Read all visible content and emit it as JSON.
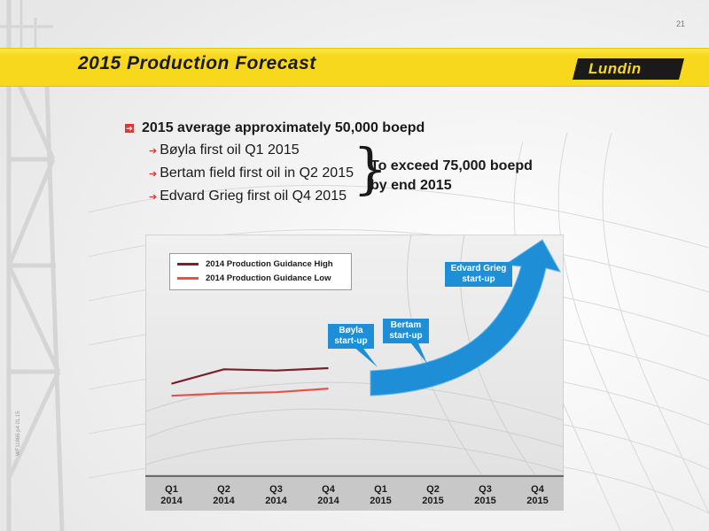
{
  "page": {
    "number": "21",
    "watermark": "WF11866 p4 01.15"
  },
  "header": {
    "title": "2015 Production Forecast",
    "logo_text": "Lundin"
  },
  "bullets": {
    "main": "2015 average approximately 50,000 boepd",
    "subs": [
      "Bøyla first oil Q1 2015",
      "Bertam field first oil in Q2 2015",
      "Edvard Grieg first oil Q4 2015"
    ],
    "target_line1": "To exceed 75,000 boepd",
    "target_line2": "by end 2015"
  },
  "colors": {
    "accent_yellow": "#f7d81c",
    "high_line": "#7b1f2a",
    "low_line": "#e8524a",
    "arrow_blue": "#1e8fd6",
    "bullet_red": "#d63b2f"
  },
  "chart_data": {
    "type": "line",
    "categories": [
      "Q1 2014",
      "Q2 2014",
      "Q3 2014",
      "Q4 2014",
      "Q1 2015",
      "Q2 2015",
      "Q3 2015",
      "Q4 2015"
    ],
    "x_tick_labels": [
      [
        "Q1",
        "2014"
      ],
      [
        "Q2",
        "2014"
      ],
      [
        "Q3",
        "2014"
      ],
      [
        "Q4",
        "2014"
      ],
      [
        "Q1",
        "2015"
      ],
      [
        "Q2",
        "2015"
      ],
      [
        "Q3",
        "2015"
      ],
      [
        "Q4",
        "2015"
      ]
    ],
    "series": [
      {
        "name": "2014 Production Guidance High",
        "values": [
          0.38,
          0.44,
          0.435,
          0.445,
          null,
          null,
          null,
          null
        ]
      },
      {
        "name": "2014 Production Guidance Low",
        "values": [
          0.33,
          0.34,
          0.345,
          0.36,
          null,
          null,
          null,
          null
        ]
      }
    ],
    "ylim": [
      0,
      1
    ],
    "legend": "top-left",
    "annotations": [
      {
        "text_line1": "Bøyla",
        "text_line2": "start-up"
      },
      {
        "text_line1": "Bertam",
        "text_line2": "start-up"
      },
      {
        "text_line1": "Edvard Grieg",
        "text_line2": "start-up"
      }
    ]
  }
}
